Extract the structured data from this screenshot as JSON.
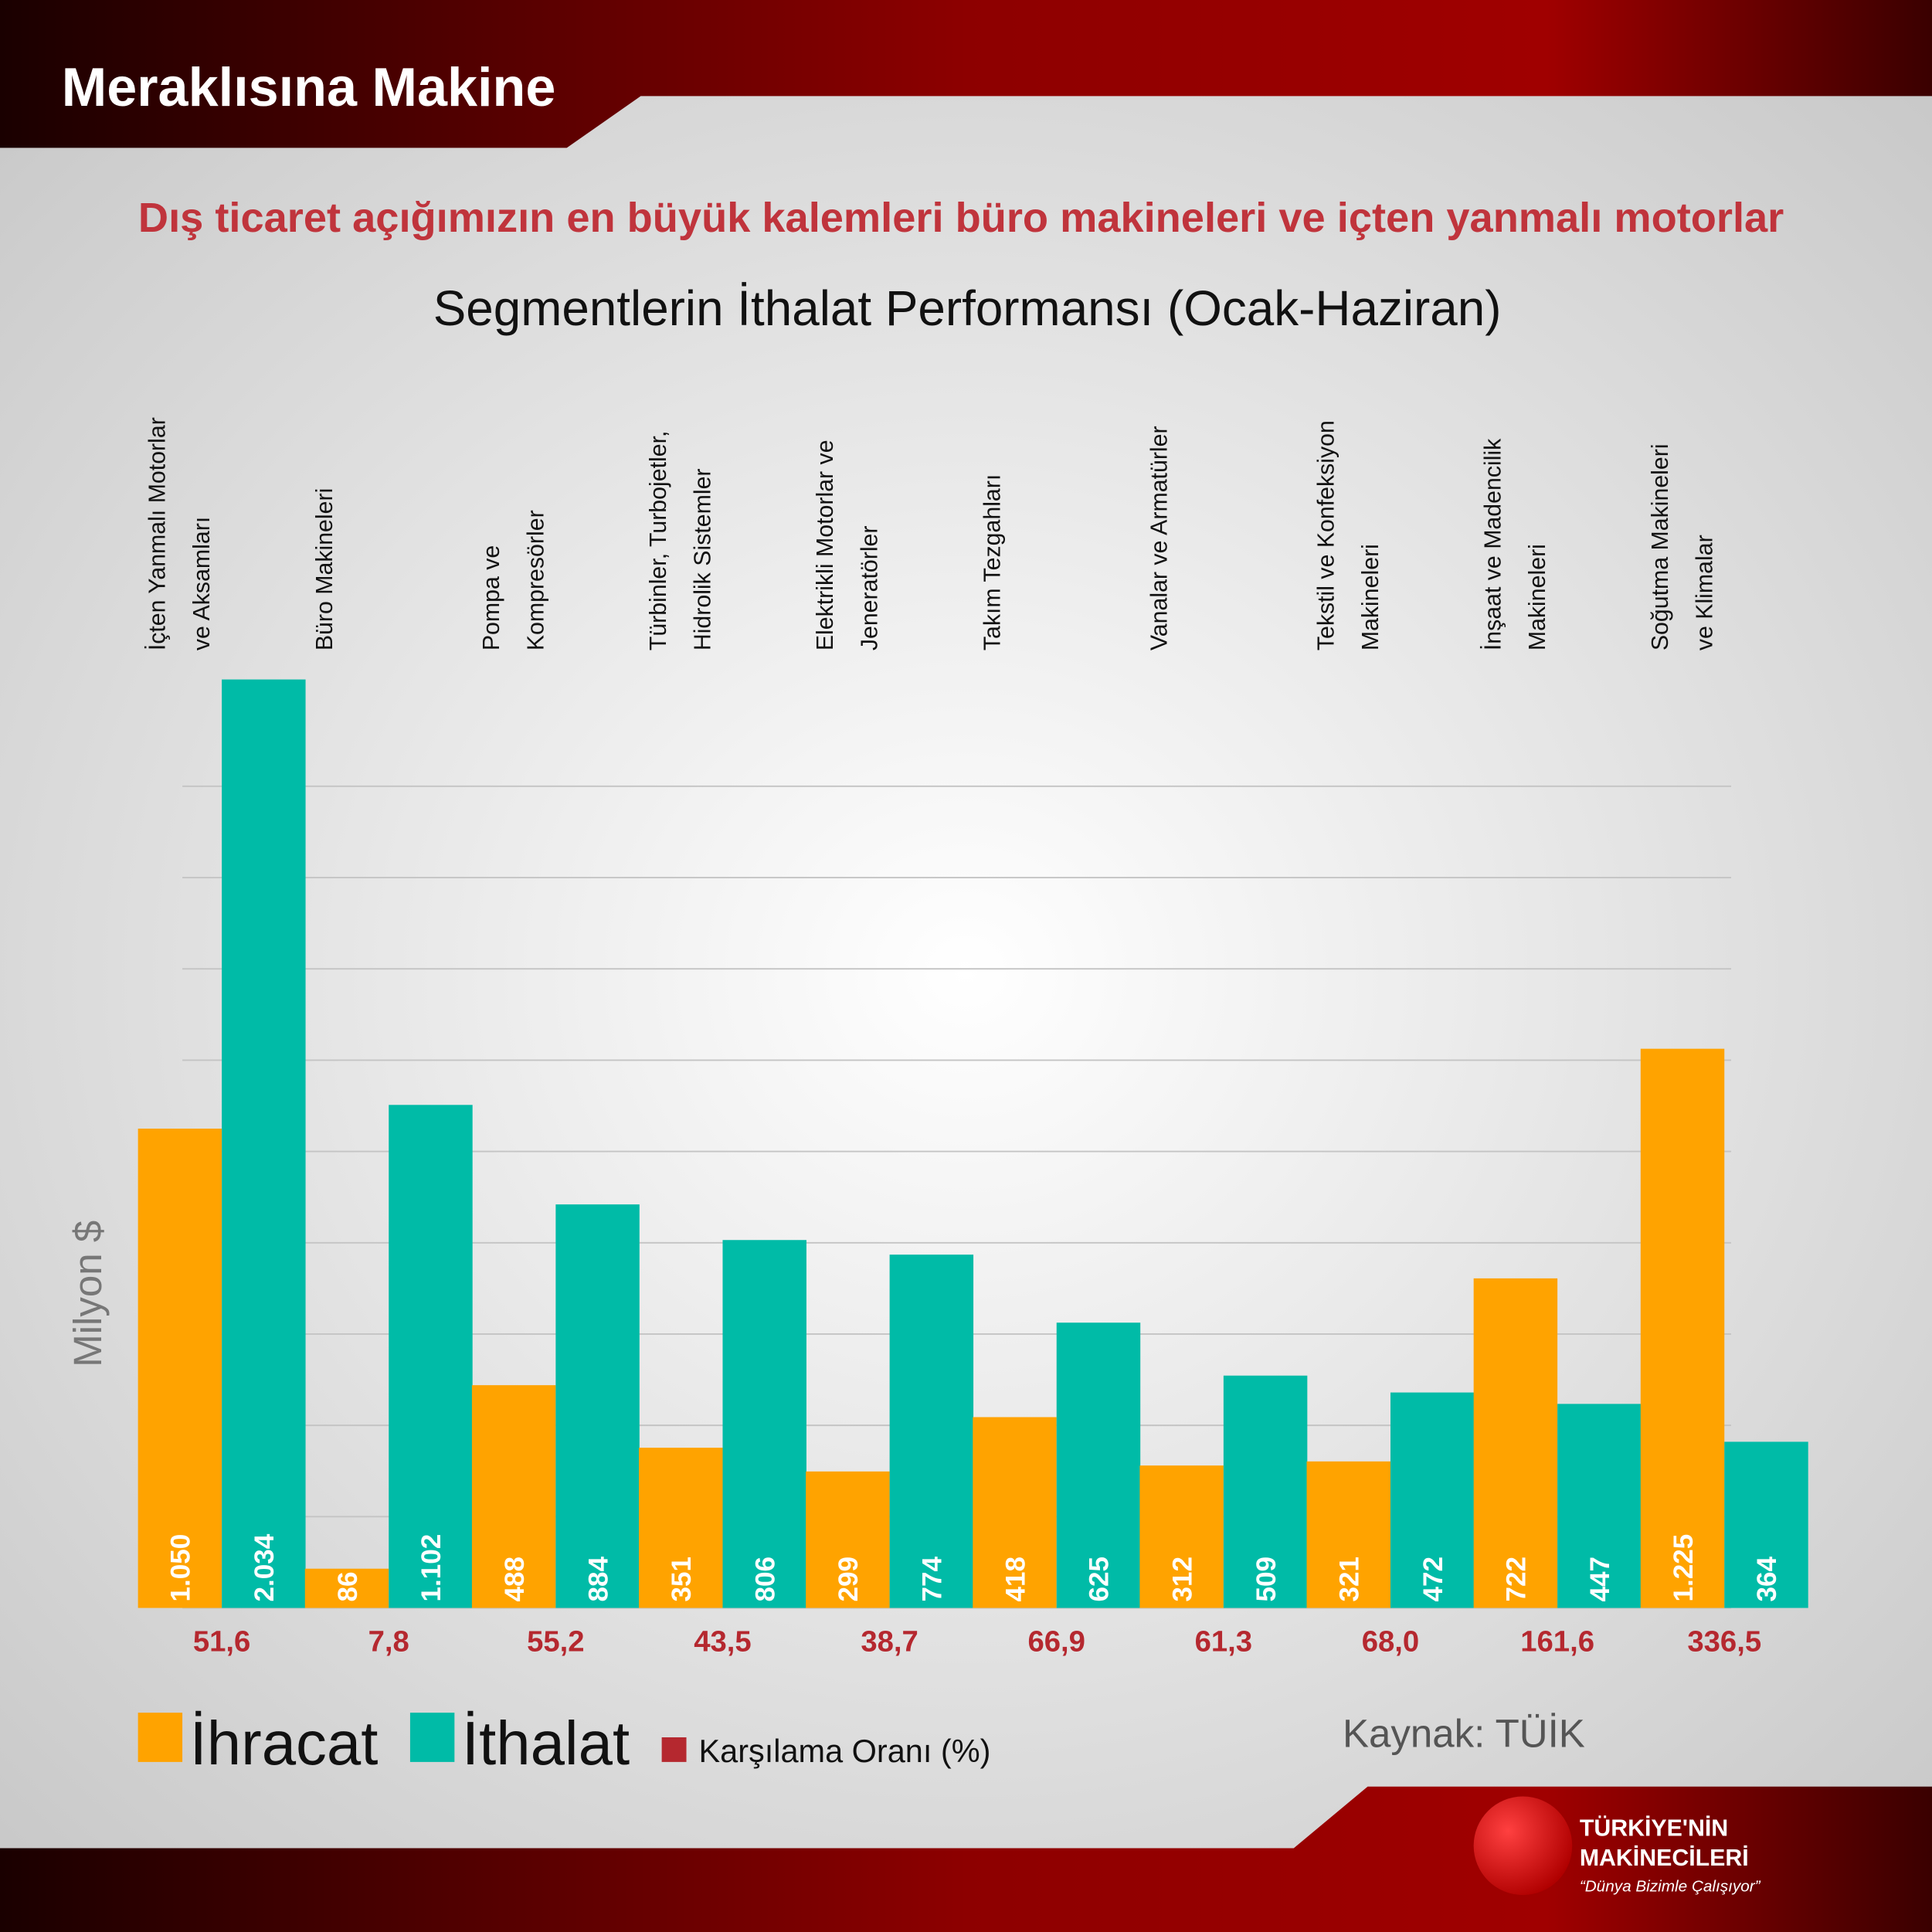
{
  "header": "Meraklısına Makine",
  "source": "Kaynak: TÜİK",
  "logo": {
    "line1": "TÜRKİYE'NİN",
    "line2": "MAKİNECİLERİ",
    "slogan": "“Dünya Bizimle Çalışıyor”"
  },
  "chart_data": {
    "type": "bar",
    "title": "Dış ticaret açığımızın en büyük kalemleri büro makineleri ve içten yanmalı motorlar",
    "subtitle": "Segmentlerin İthalat Performansı (Ocak-Haziran)",
    "y_label": "Milyon $",
    "categories": [
      [
        "İçten Yanmalı Motorlar",
        "ve Aksamları"
      ],
      [
        "Büro Makineleri"
      ],
      [
        "Pompa ve",
        "Kompresörler"
      ],
      [
        "Türbinler, Turbojetler,",
        "Hidrolik Sistemler"
      ],
      [
        "Elektrikli Motorlar ve",
        "Jeneratörler"
      ],
      [
        "Takım Tezgahları"
      ],
      [
        "Vanalar ve Armatürler"
      ],
      [
        "Tekstil ve Konfeksiyon",
        "Makineleri"
      ],
      [
        "İnşaat ve Madencilik",
        "Makineleri"
      ],
      [
        "Soğutma Makineleri",
        "ve Klimalar"
      ]
    ],
    "series": [
      {
        "name": "İhracat",
        "color": "#ffa300",
        "values": [
          1050,
          86,
          488,
          351,
          299,
          418,
          312,
          321,
          722,
          1225
        ],
        "value_labels": [
          "1.050",
          "86",
          "488",
          "351",
          "299",
          "418",
          "312",
          "321",
          "722",
          "1.225"
        ]
      },
      {
        "name": "İthalat",
        "color": "#00bba7",
        "values": [
          2034,
          1102,
          884,
          806,
          774,
          625,
          509,
          472,
          447,
          364
        ],
        "value_labels": [
          "2.034",
          "1.102",
          "884",
          "806",
          "774",
          "625",
          "509",
          "472",
          "447",
          "364"
        ]
      }
    ],
    "ratio": {
      "name": "Karşılama Oranı (%)",
      "color": "#b5282f",
      "values": [
        51.6,
        7.8,
        55.2,
        43.5,
        38.7,
        66.9,
        61.3,
        68.0,
        161.6,
        336.5
      ],
      "value_labels": [
        "51,6",
        "7,8",
        "55,2",
        "43,5",
        "38,7",
        "66,9",
        "61,3",
        "68,0",
        "161,6",
        "336,5"
      ]
    },
    "ylim": [
      0,
      2100
    ],
    "yticks": [
      0,
      200,
      400,
      600,
      800,
      1000,
      1200,
      1400,
      1600,
      1800
    ],
    "grid": true
  }
}
